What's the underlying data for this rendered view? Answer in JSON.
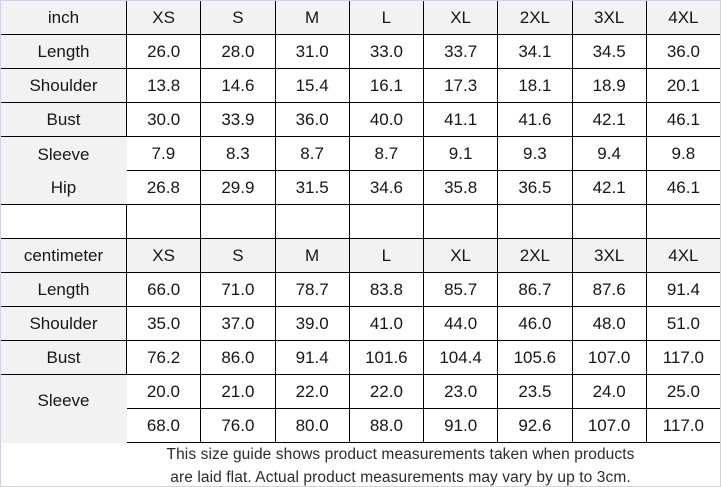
{
  "colors": {
    "grid_border": "#000000",
    "cell_gray": "#f2f2f2",
    "outer_border": "#ccd4e4",
    "text": "#161616"
  },
  "footer": {
    "line1": "This size guide shows product measurements taken when products",
    "line2": "are laid flat. Actual product measurements may vary by up to 3cm."
  },
  "tables": [
    {
      "unit": "inch",
      "sizes": [
        "XS",
        "S",
        "M",
        "L",
        "XL",
        "2XL",
        "3XL",
        "4XL"
      ],
      "rows": [
        {
          "label": "Length",
          "values": [
            "26.0",
            "28.0",
            "31.0",
            "33.0",
            "33.7",
            "34.1",
            "34.5",
            "36.0"
          ]
        },
        {
          "label": "Shoulder",
          "values": [
            "13.8",
            "14.6",
            "15.4",
            "16.1",
            "17.3",
            "18.1",
            "18.9",
            "20.1"
          ]
        },
        {
          "label": "Bust",
          "values": [
            "30.0",
            "33.9",
            "36.0",
            "40.0",
            "41.1",
            "41.6",
            "42.1",
            "46.1"
          ]
        },
        {
          "label": "Sleeve",
          "values": [
            "7.9",
            "8.3",
            "8.7",
            "8.7",
            "9.1",
            "9.3",
            "9.4",
            "9.8"
          ]
        },
        {
          "label": "Hip",
          "values": [
            "26.8",
            "29.9",
            "31.5",
            "34.6",
            "35.8",
            "36.5",
            "42.1",
            "46.1"
          ]
        }
      ]
    },
    {
      "unit": "centimeter",
      "sizes": [
        "XS",
        "S",
        "M",
        "L",
        "XL",
        "2XL",
        "3XL",
        "4XL"
      ],
      "rows": [
        {
          "label": "Length",
          "values": [
            "66.0",
            "71.0",
            "78.7",
            "83.8",
            "85.7",
            "86.7",
            "87.6",
            "91.4"
          ]
        },
        {
          "label": "Shoulder",
          "values": [
            "35.0",
            "37.0",
            "39.0",
            "41.0",
            "44.0",
            "46.0",
            "48.0",
            "51.0"
          ]
        },
        {
          "label": "Bust",
          "values": [
            "76.2",
            "86.0",
            "91.4",
            "101.6",
            "104.4",
            "105.6",
            "107.0",
            "117.0"
          ]
        },
        {
          "label": "Sleeve",
          "values": [
            "20.0",
            "21.0",
            "22.0",
            "22.0",
            "23.0",
            "23.5",
            "24.0",
            "25.0"
          ]
        },
        {
          "label": "Hip",
          "values": [
            "68.0",
            "76.0",
            "80.0",
            "88.0",
            "91.0",
            "92.6",
            "107.0",
            "117.0"
          ]
        }
      ]
    }
  ]
}
